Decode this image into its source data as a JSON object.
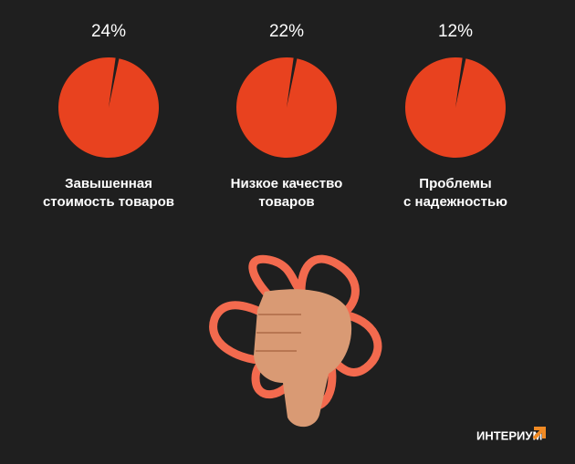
{
  "chart_data": {
    "type": "pie",
    "categories": [
      [
        "Завышенная",
        "стоимость товаров"
      ],
      [
        "Низкое качество",
        "товаров"
      ],
      [
        "Проблемы",
        "с надежностью"
      ]
    ],
    "values": [
      24,
      22,
      12
    ],
    "value_labels": [
      "24%",
      "22%",
      "12%"
    ],
    "color": "#e8421f"
  },
  "brand": "ИНТЕРИУМ"
}
